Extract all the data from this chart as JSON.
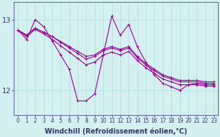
{
  "xlabel": "Windchill (Refroidissement éolien,°C)",
  "ylabel": "",
  "bg_color": "#d4f0f0",
  "line_color": "#990099",
  "grid_color": "#aadddd",
  "axis_color": "#666699",
  "tick_color": "#333366",
  "xlim": [
    -0.5,
    23.5
  ],
  "ylim_bottom": 11.65,
  "ylim_top": 13.25,
  "yticks": [
    12,
    13
  ],
  "xticks": [
    0,
    1,
    2,
    3,
    4,
    5,
    6,
    7,
    8,
    9,
    10,
    11,
    12,
    13,
    14,
    15,
    16,
    17,
    18,
    19,
    20,
    21,
    22,
    23
  ],
  "lines": [
    {
      "x": [
        0,
        1,
        2,
        3,
        4,
        5,
        6,
        7,
        8,
        9,
        10,
        11,
        12,
        13,
        14,
        15,
        16,
        17,
        18,
        19,
        20,
        21,
        22,
        23
      ],
      "y": [
        12.85,
        12.72,
        13.0,
        12.9,
        12.7,
        12.5,
        12.3,
        11.85,
        11.85,
        11.95,
        12.5,
        13.05,
        12.78,
        12.93,
        12.62,
        12.4,
        12.22,
        12.1,
        12.05,
        12.0,
        12.08,
        12.1,
        12.08,
        12.08
      ]
    },
    {
      "x": [
        0,
        1,
        2,
        3,
        4,
        5,
        6,
        7,
        8,
        9,
        10,
        11,
        12,
        13,
        14,
        15,
        16,
        17,
        18,
        19,
        20,
        21,
        22,
        23
      ],
      "y": [
        12.85,
        12.78,
        12.88,
        12.82,
        12.76,
        12.69,
        12.62,
        12.55,
        12.48,
        12.5,
        12.58,
        12.62,
        12.58,
        12.62,
        12.48,
        12.38,
        12.3,
        12.22,
        12.18,
        12.14,
        12.14,
        12.14,
        12.12,
        12.12
      ]
    },
    {
      "x": [
        0,
        1,
        2,
        3,
        4,
        5,
        6,
        7,
        8,
        9,
        10,
        11,
        12,
        13,
        14,
        15,
        16,
        17,
        18,
        19,
        20,
        21,
        22,
        23
      ],
      "y": [
        12.85,
        12.78,
        12.88,
        12.82,
        12.76,
        12.68,
        12.6,
        12.52,
        12.44,
        12.48,
        12.56,
        12.6,
        12.56,
        12.6,
        12.46,
        12.36,
        12.28,
        12.2,
        12.16,
        12.12,
        12.12,
        12.12,
        12.1,
        12.1
      ]
    },
    {
      "x": [
        0,
        1,
        2,
        3,
        4,
        5,
        6,
        7,
        8,
        9,
        10,
        11,
        12,
        13,
        14,
        15,
        16,
        17,
        18,
        19,
        20,
        21,
        22,
        23
      ],
      "y": [
        12.85,
        12.76,
        12.86,
        12.8,
        12.72,
        12.63,
        12.54,
        12.45,
        12.36,
        12.4,
        12.5,
        12.54,
        12.5,
        12.55,
        12.42,
        12.32,
        12.24,
        12.16,
        12.12,
        12.08,
        12.08,
        12.08,
        12.06,
        12.06
      ]
    }
  ],
  "title_fontsize": 7,
  "xlabel_fontsize": 7,
  "tick_fontsize": 5.5,
  "marker": "+",
  "markersize": 3.5,
  "linewidth": 0.85
}
